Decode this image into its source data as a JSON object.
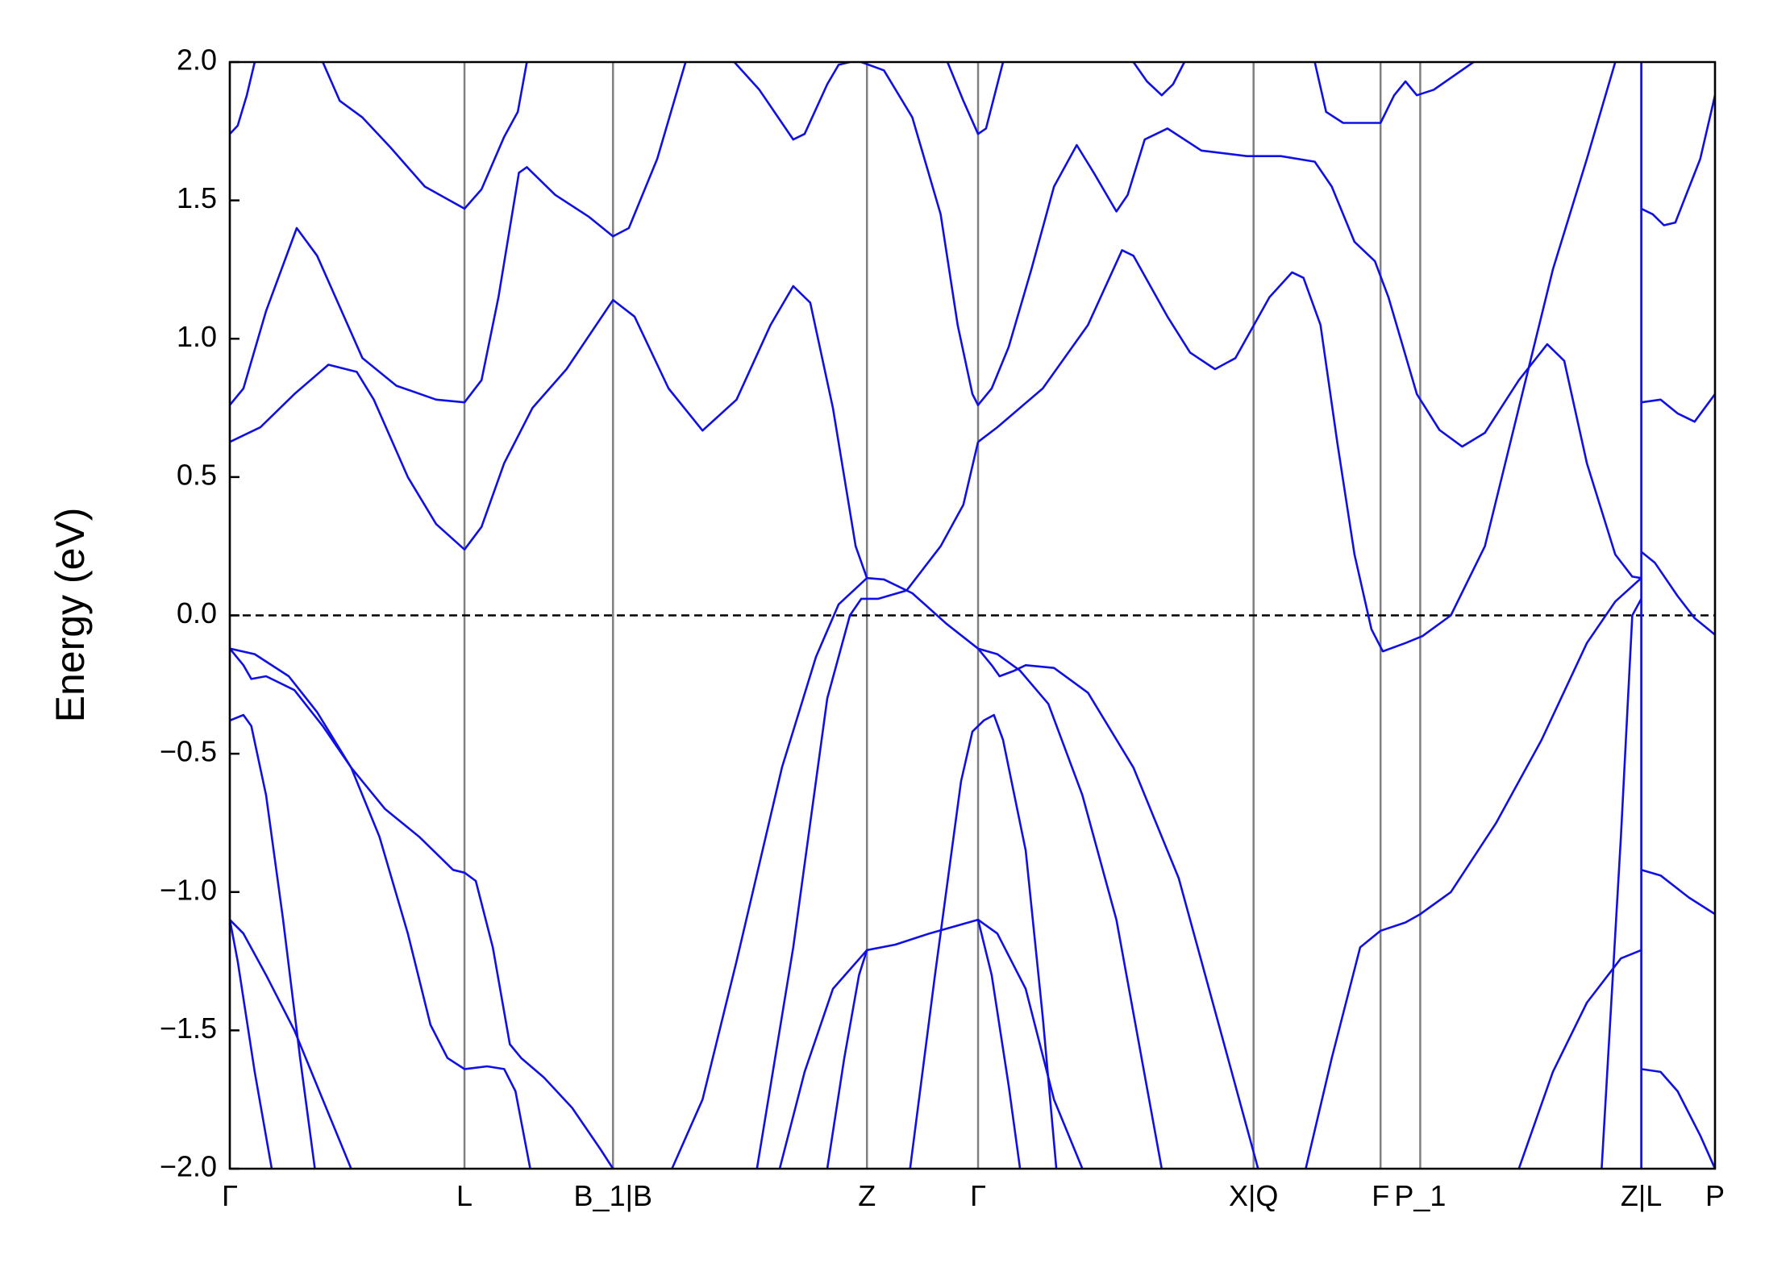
{
  "chart_data": {
    "type": "line",
    "ylabel": "Energy (eV)",
    "color": "#1010e6",
    "grid": "x",
    "hline": 0,
    "xlim": [
      0,
      1310
    ],
    "ylim": [
      -2.0,
      2.0
    ],
    "xticks": [
      {
        "value": 0,
        "label": "Γ"
      },
      {
        "value": 207,
        "label": "L"
      },
      {
        "value": 338,
        "label": "B_1|B"
      },
      {
        "value": 562,
        "label": "Z"
      },
      {
        "value": 660,
        "label": "Γ"
      },
      {
        "value": 903,
        "label": "X|Q"
      },
      {
        "value": 1015,
        "label": "F"
      },
      {
        "value": 1050,
        "label": "P_1"
      },
      {
        "value": 1245,
        "label": "Z|L"
      },
      {
        "value": 1310,
        "label": "P"
      }
    ],
    "yticks": [
      {
        "value": 2.0,
        "label": "2.0"
      },
      {
        "value": 1.5,
        "label": "1.5"
      },
      {
        "value": 1.0,
        "label": "1.0"
      },
      {
        "value": 0.5,
        "label": "0.5"
      },
      {
        "value": 0.0,
        "label": "0.0"
      },
      {
        "value": -0.5,
        "label": "−0.5"
      },
      {
        "value": -1.0,
        "label": "−1.0"
      },
      {
        "value": -1.5,
        "label": "−1.5"
      },
      {
        "value": -2.0,
        "label": "−2.0"
      }
    ],
    "series": [
      {
        "x": [
          0,
          27,
          57,
          87,
          112,
          127,
          157,
          182,
          207,
          222,
          242,
          267,
          297,
          338,
          357,
          387,
          417,
          447,
          477,
          497,
          512,
          532,
          552,
          562,
          577,
          602,
          632,
          660,
          672,
          679,
          692,
          702,
          727,
          757,
          797,
          837,
          877,
          907
        ],
        "values": [
          0.627,
          0.68,
          0.8,
          0.906,
          0.88,
          0.78,
          0.5,
          0.33,
          0.238,
          0.32,
          0.55,
          0.75,
          0.89,
          1.14,
          1.08,
          0.82,
          0.668,
          0.78,
          1.05,
          1.19,
          1.13,
          0.75,
          0.25,
          0.135,
          0.13,
          0.08,
          -0.03,
          -0.12,
          -0.18,
          -0.22,
          -0.2,
          -0.18,
          -0.19,
          -0.28,
          -0.55,
          -0.95,
          -1.55,
          -2.0
        ]
      },
      {
        "x": [
          0,
          12,
          32,
          59,
          77,
          117,
          147,
          182,
          207,
          222,
          237,
          255,
          262,
          287,
          317,
          338,
          352,
          377,
          402
        ],
        "values": [
          0.76,
          0.82,
          1.1,
          1.4,
          1.3,
          0.93,
          0.83,
          0.78,
          0.77,
          0.85,
          1.15,
          1.6,
          1.62,
          1.52,
          1.44,
          1.37,
          1.4,
          1.65,
          2.0
        ]
      },
      {
        "x": [
          0,
          7,
          15,
          22
        ],
        "values": [
          1.74,
          1.77,
          1.88,
          2.0
        ]
      },
      {
        "x": [
          82,
          97,
          117,
          142,
          172,
          207,
          222,
          242,
          254,
          262
        ],
        "values": [
          2.0,
          1.86,
          1.8,
          1.69,
          1.55,
          1.47,
          1.54,
          1.73,
          1.82,
          2.0
        ]
      },
      {
        "x": [
          445,
          467,
          497,
          507,
          527,
          537,
          547
        ],
        "values": [
          2.0,
          1.9,
          1.72,
          1.74,
          1.92,
          1.99,
          2.0
        ]
      },
      {
        "x": [
          557,
          577,
          602,
          627,
          642,
          655,
          660,
          672,
          687,
          707,
          727,
          747,
          762,
          782,
          792,
          807,
          827,
          857,
          897,
          927,
          957,
          972,
          992,
          1010,
          1022,
          1047,
          1067,
          1087,
          1107,
          1137,
          1162,
          1177,
          1197,
          1222,
          1237,
          1245
        ],
        "values": [
          2.0,
          1.97,
          1.8,
          1.45,
          1.05,
          0.8,
          0.76,
          0.82,
          0.97,
          1.25,
          1.55,
          1.7,
          1.6,
          1.46,
          1.52,
          1.72,
          1.76,
          1.68,
          1.66,
          1.66,
          1.64,
          1.55,
          1.35,
          1.28,
          1.15,
          0.8,
          0.67,
          0.61,
          0.66,
          0.85,
          0.98,
          0.92,
          0.55,
          0.22,
          0.14,
          0.135
        ]
      },
      {
        "x": [
          633,
          647,
          660,
          667,
          682
        ],
        "values": [
          2.0,
          1.86,
          1.74,
          1.76,
          2.0
        ]
      },
      {
        "x": [
          660,
          677,
          717,
          757,
          787,
          797,
          827,
          847,
          869,
          887,
          917,
          937,
          947,
          962,
          977,
          992,
          1007,
          1017,
          1037,
          1052,
          1077,
          1107,
          1137,
          1167,
          1197,
          1222
        ],
        "values": [
          0.627,
          0.68,
          0.82,
          1.05,
          1.32,
          1.3,
          1.08,
          0.95,
          0.89,
          0.93,
          1.15,
          1.24,
          1.22,
          1.05,
          0.62,
          0.22,
          -0.05,
          -0.13,
          -0.1,
          -0.075,
          0.0,
          0.25,
          0.75,
          1.25,
          1.65,
          2.0
        ]
      },
      {
        "x": [
          797,
          809,
          822,
          832,
          842
        ],
        "values": [
          2.0,
          1.93,
          1.88,
          1.92,
          2.0
        ]
      },
      {
        "x": [
          957,
          967,
          982,
          1015,
          1027,
          1037,
          1047,
          1062,
          1097
        ],
        "values": [
          2.0,
          1.82,
          1.78,
          1.78,
          1.88,
          1.93,
          1.88,
          1.9,
          2.0
        ]
      },
      {
        "x": [
          1245,
          1255,
          1265,
          1275,
          1297,
          1310
        ],
        "values": [
          1.47,
          1.45,
          1.41,
          1.42,
          1.65,
          1.88
        ]
      },
      {
        "x": [
          1245,
          1262,
          1277,
          1292,
          1310
        ],
        "values": [
          0.77,
          0.78,
          0.73,
          0.7,
          0.8
        ]
      },
      {
        "x": [
          1245,
          1257,
          1277,
          1292,
          1310
        ],
        "values": [
          0.23,
          0.19,
          0.07,
          -0.01,
          -0.07
        ]
      },
      {
        "x": [
          1245,
          1262,
          1287,
          1310
        ],
        "values": [
          -0.92,
          -0.94,
          -1.02,
          -1.08
        ]
      },
      {
        "x": [
          1245,
          1262,
          1277,
          1297,
          1310
        ],
        "values": [
          -1.64,
          -1.65,
          -1.72,
          -1.88,
          -2.0
        ]
      },
      {
        "x": [
          0,
          22,
          52,
          77,
          107,
          137,
          167,
          197,
          207,
          217,
          232,
          247,
          257,
          277,
          302,
          327,
          338
        ],
        "values": [
          -0.12,
          -0.14,
          -0.22,
          -0.35,
          -0.55,
          -0.7,
          -0.8,
          -0.92,
          -0.93,
          -0.96,
          -1.2,
          -1.55,
          -1.6,
          -1.67,
          -1.78,
          -1.93,
          -2.0
        ]
      },
      {
        "x": [
          0,
          12,
          19,
          32,
          57,
          82,
          107,
          132,
          157,
          177,
          192,
          207,
          227,
          242,
          252,
          265
        ],
        "values": [
          -0.12,
          -0.18,
          -0.23,
          -0.22,
          -0.27,
          -0.4,
          -0.55,
          -0.8,
          -1.15,
          -1.48,
          -1.6,
          -1.64,
          -1.63,
          -1.64,
          -1.72,
          -2.0
        ]
      },
      {
        "x": [
          0,
          12,
          19,
          32,
          47,
          62,
          75
        ],
        "values": [
          -0.38,
          -0.36,
          -0.4,
          -0.65,
          -1.1,
          -1.6,
          -2.0
        ]
      },
      {
        "x": [
          0,
          12,
          32,
          57,
          82,
          107
        ],
        "values": [
          -1.1,
          -1.15,
          -1.3,
          -1.5,
          -1.75,
          -2.0
        ]
      },
      {
        "x": [
          0,
          7,
          22,
          37
        ],
        "values": [
          -1.1,
          -1.25,
          -1.65,
          -2.0
        ]
      },
      {
        "x": [
          390,
          417,
          447,
          487,
          517,
          537,
          562
        ],
        "values": [
          -2.0,
          -1.75,
          -1.25,
          -0.55,
          -0.15,
          0.04,
          0.135
        ]
      },
      {
        "x": [
          465,
          497,
          527,
          547,
          557,
          572,
          597,
          627,
          647,
          660
        ],
        "values": [
          -2.0,
          -1.2,
          -0.3,
          0.0,
          0.06,
          0.06,
          0.09,
          0.25,
          0.4,
          0.627
        ]
      },
      {
        "x": [
          485,
          507,
          532,
          562,
          587,
          617,
          660,
          677,
          702,
          727,
          752
        ],
        "values": [
          -2.0,
          -1.65,
          -1.35,
          -1.21,
          -1.19,
          -1.15,
          -1.1,
          -1.15,
          -1.35,
          -1.75,
          -2.0
        ]
      },
      {
        "x": [
          527,
          542,
          555,
          562
        ],
        "values": [
          -2.0,
          -1.6,
          -1.3,
          -1.21
        ]
      },
      {
        "x": [
          600,
          622,
          645,
          655,
          665,
          674,
          682,
          702,
          717,
          729
        ],
        "values": [
          -2.0,
          -1.3,
          -0.6,
          -0.42,
          -0.38,
          -0.36,
          -0.45,
          -0.85,
          -1.45,
          -2.0
        ]
      },
      {
        "x": [
          660,
          672,
          687,
          697
        ],
        "values": [
          -1.1,
          -1.3,
          -1.7,
          -2.0
        ]
      },
      {
        "x": [
          660,
          677,
          697,
          722,
          752,
          782,
          822
        ],
        "values": [
          -0.12,
          -0.14,
          -0.2,
          -0.32,
          -0.65,
          -1.1,
          -2.0
        ]
      },
      {
        "x": [
          949,
          972,
          997,
          1015,
          1037,
          1050,
          1077,
          1117,
          1157,
          1197,
          1222,
          1245
        ],
        "values": [
          -2.0,
          -1.6,
          -1.2,
          -1.14,
          -1.11,
          -1.08,
          -1.0,
          -0.75,
          -0.45,
          -0.1,
          0.05,
          0.135
        ]
      },
      {
        "x": [
          1210,
          1227,
          1237,
          1245
        ],
        "values": [
          -2.0,
          -0.8,
          0.0,
          0.06
        ]
      },
      {
        "x": [
          1137,
          1167,
          1197,
          1227,
          1245
        ],
        "values": [
          -2.0,
          -1.65,
          -1.4,
          -1.24,
          -1.21
        ]
      },
      {
        "x": [
          1245,
          1245
        ],
        "values": [
          -2.0,
          2.0
        ]
      }
    ]
  }
}
